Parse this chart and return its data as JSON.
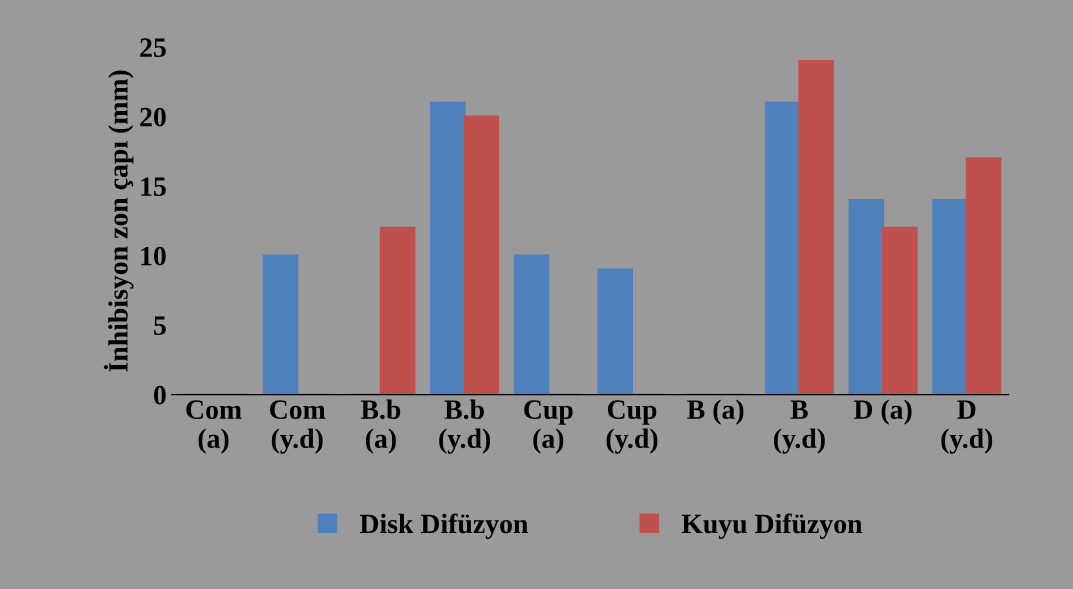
{
  "chart_data": {
    "type": "bar",
    "ylabel": "İnhibisyon zon çapı (mm)",
    "categories": [
      "Com\n(a)",
      "Com\n(y.d)",
      "B.b\n(a)",
      "B.b\n(y.d)",
      "Cup\n(a)",
      "Cup\n(y.d)",
      "B (a)",
      "B\n(y.d)",
      "D (a)",
      "D\n(y.d)"
    ],
    "series": [
      {
        "name": "Disk Difüzyon",
        "color": "#4f81bd",
        "values": [
          0,
          10,
          0,
          21,
          10,
          9,
          0,
          21,
          14,
          14
        ]
      },
      {
        "name": "Kuyu Difüzyon",
        "color": "#c0504d",
        "values": [
          0,
          0,
          12,
          20,
          0,
          0,
          0,
          24,
          12,
          17
        ]
      }
    ],
    "ylim": [
      0,
      25
    ],
    "yticks": [
      0,
      5,
      10,
      15,
      20,
      25
    ],
    "grid": false,
    "legend": "bottom"
  }
}
